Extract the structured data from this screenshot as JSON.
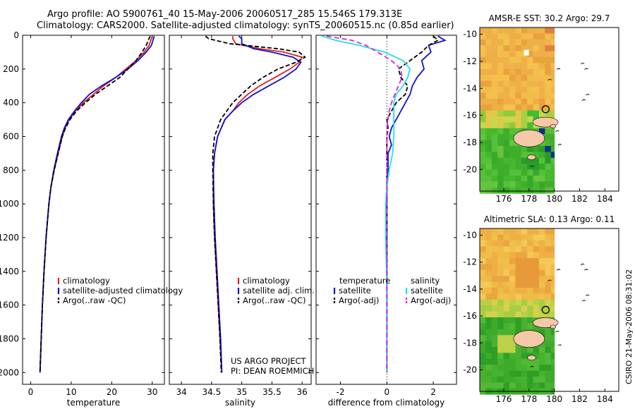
{
  "header": {
    "line1": "Argo profile: AO 5900761_40 15-May-2006 20060517_285 15.546S 179.313E",
    "line2": "Climatology: CARS2000. Satellite-adjusted climatology: synTS_20060515.nc (0.85d earlier)"
  },
  "credit": {
    "line1": "US ARGO PROJECT",
    "line2": "PI: DEAN ROEMMICH"
  },
  "stamp": "CSIRO 21-May-2006 08:31:02",
  "colors": {
    "climatology": "#e02020",
    "satellite": "#1010d0",
    "argo": "#000000",
    "sal_sat": "#20e0f0",
    "sal_argo": "#e020e0"
  },
  "chart_data": [
    {
      "type": "line",
      "name": "temperature",
      "xlabel": "temperature",
      "xlim": [
        -2,
        33
      ],
      "xticks": [
        0,
        10,
        20,
        30
      ],
      "ylim": [
        2070,
        0
      ],
      "yticks": [
        0,
        200,
        400,
        600,
        800,
        1000,
        1200,
        1400,
        1600,
        1800,
        2000
      ],
      "legend": [
        "climatology",
        "satellite-adjusted climatology",
        "Argo(..raw -QC)"
      ],
      "series": [
        {
          "name": "climatology",
          "color": "#e02020",
          "dash": "",
          "depth": [
            5,
            20,
            60,
            100,
            150,
            200,
            250,
            300,
            350,
            400,
            450,
            500,
            550,
            600,
            700,
            800,
            900,
            1000,
            1200,
            1400,
            1600,
            1800,
            2000
          ],
          "values": [
            30.0,
            29.8,
            29.2,
            28.0,
            26.0,
            23.5,
            21.0,
            18.0,
            15.5,
            13.0,
            11.0,
            9.5,
            8.5,
            7.8,
            6.8,
            5.8,
            5.0,
            4.5,
            3.8,
            3.3,
            2.9,
            2.6,
            2.3
          ]
        },
        {
          "name": "satellite",
          "color": "#1010d0",
          "dash": "",
          "depth": [
            5,
            20,
            60,
            100,
            150,
            200,
            250,
            300,
            350,
            400,
            450,
            500,
            550,
            600,
            700,
            800,
            900,
            1000,
            1200,
            1400,
            1600,
            1800,
            2000
          ],
          "values": [
            30.5,
            30.3,
            29.8,
            28.5,
            26.5,
            24.0,
            21.0,
            17.5,
            14.5,
            12.5,
            10.8,
            9.3,
            8.3,
            7.6,
            6.6,
            5.7,
            5.0,
            4.5,
            3.8,
            3.3,
            2.9,
            2.6,
            2.3
          ]
        },
        {
          "name": "argo",
          "color": "#000000",
          "dash": "6,3",
          "depth": [
            5,
            20,
            60,
            100,
            150,
            200,
            250,
            300,
            350,
            400,
            450,
            500,
            550,
            600,
            700,
            800,
            900,
            1000,
            1200,
            1400,
            1600,
            1800,
            2000
          ],
          "values": [
            29.5,
            29.2,
            28.5,
            27.5,
            26.0,
            24.0,
            22.0,
            19.0,
            16.0,
            13.5,
            11.3,
            9.7,
            8.6,
            7.8,
            6.8,
            5.8,
            5.0,
            4.5,
            3.8,
            3.3,
            2.9,
            2.6,
            2.3
          ]
        }
      ]
    },
    {
      "type": "line",
      "name": "salinity",
      "xlabel": "salinity",
      "xlim": [
        33.8,
        36.15
      ],
      "xticks": [
        34,
        34.5,
        35,
        35.5,
        36
      ],
      "ylim": [
        2070,
        0
      ],
      "legend": [
        "climatology",
        "satellite adj. clim.",
        "Argo(..raw -QC)"
      ],
      "series": [
        {
          "name": "climatology",
          "color": "#e02020",
          "dash": "",
          "depth": [
            5,
            20,
            50,
            80,
            100,
            130,
            160,
            200,
            250,
            300,
            350,
            400,
            450,
            500,
            600,
            700,
            800,
            1000,
            1200,
            1400,
            1600,
            1800,
            2000
          ],
          "values": [
            34.85,
            34.85,
            34.9,
            35.3,
            35.7,
            36.0,
            35.95,
            35.8,
            35.55,
            35.3,
            35.1,
            34.95,
            34.85,
            34.72,
            34.6,
            34.55,
            34.53,
            34.53,
            34.55,
            34.58,
            34.61,
            34.64,
            34.67
          ]
        },
        {
          "name": "satellite",
          "color": "#1010d0",
          "dash": "",
          "depth": [
            5,
            20,
            50,
            80,
            100,
            130,
            160,
            200,
            250,
            300,
            350,
            400,
            450,
            500,
            600,
            700,
            800,
            1000,
            1200,
            1400,
            1600,
            1800,
            2000
          ],
          "values": [
            34.95,
            35.0,
            35.0,
            35.2,
            35.5,
            35.85,
            35.98,
            35.9,
            35.7,
            35.45,
            35.2,
            35.0,
            34.85,
            34.72,
            34.6,
            34.55,
            34.53,
            34.54,
            34.56,
            34.59,
            34.62,
            34.65,
            34.67
          ]
        },
        {
          "name": "argo",
          "color": "#000000",
          "dash": "6,3",
          "depth": [
            5,
            20,
            50,
            80,
            100,
            130,
            160,
            200,
            250,
            300,
            350,
            400,
            450,
            500,
            600,
            700,
            800,
            1000,
            1200,
            1400,
            1600,
            1800,
            2000
          ],
          "values": [
            34.4,
            34.45,
            34.8,
            35.6,
            35.95,
            36.05,
            35.9,
            35.6,
            35.35,
            35.15,
            35.0,
            34.85,
            34.75,
            34.65,
            34.55,
            34.52,
            34.52,
            34.53,
            34.55,
            34.58,
            34.61,
            34.64,
            34.66
          ]
        }
      ]
    },
    {
      "type": "line",
      "name": "difference",
      "xlabel": "difference from climatology",
      "xlim": [
        -3.05,
        3.0
      ],
      "xticks": [
        -2,
        0,
        2
      ],
      "ylim": [
        2070,
        0
      ],
      "legend": [
        "temperature",
        "satellite",
        "Argo(-adj)",
        "salinity",
        "satellite",
        "Argo(-adj)"
      ],
      "series": [
        {
          "name": "temperature satellite",
          "color": "#1010d0",
          "dash": "",
          "depth": [
            5,
            30,
            60,
            100,
            150,
            200,
            250,
            300,
            350,
            400,
            450,
            500,
            550,
            600,
            650,
            700,
            800,
            900,
            1000,
            1200,
            1500,
            1800,
            2000
          ],
          "values": [
            2.2,
            2.5,
            1.8,
            1.9,
            1.5,
            1.6,
            1.3,
            1.1,
            1.0,
            0.8,
            0.6,
            0.4,
            0.2,
            0.1,
            0.2,
            0.05,
            0.05,
            0.0,
            0.0,
            0.0,
            0.0,
            0.0,
            0.0
          ]
        },
        {
          "name": "temperature argo",
          "color": "#000000",
          "dash": "6,3",
          "depth": [
            5,
            30,
            60,
            100,
            150,
            200,
            250,
            300,
            350,
            400,
            450,
            500,
            550,
            600,
            700,
            800,
            900,
            1000,
            1200,
            1500,
            1800,
            2000
          ],
          "values": [
            2.0,
            2.2,
            1.8,
            1.5,
            1.0,
            0.5,
            0.6,
            0.9,
            0.8,
            0.4,
            0.2,
            0.0,
            0.05,
            0.0,
            0.0,
            0.0,
            0.0,
            0.0,
            0.0,
            0.0,
            0.0,
            0.0
          ]
        },
        {
          "name": "salinity satellite",
          "color": "#20e0f0",
          "dash": "",
          "depth": [
            5,
            30,
            60,
            100,
            150,
            200,
            250,
            300,
            350,
            400,
            450,
            500,
            600,
            700,
            800,
            900,
            1000,
            1200,
            1500,
            1800,
            2000
          ],
          "values": [
            -2.8,
            -2.2,
            -1.2,
            -0.1,
            0.7,
            1.0,
            0.9,
            0.7,
            0.4,
            0.3,
            0.3,
            0.3,
            0.3,
            0.25,
            0.1,
            0.0,
            -0.05,
            -0.05,
            0.0,
            0.0,
            0.0
          ]
        },
        {
          "name": "salinity argo",
          "color": "#e020e0",
          "dash": "7,4",
          "depth": [
            5,
            30,
            60,
            100,
            150,
            200,
            250,
            300,
            350,
            400,
            450,
            500,
            550,
            600,
            700,
            800,
            1000,
            1200,
            1500,
            1800,
            2000
          ],
          "values": [
            -2.6,
            -1.5,
            -0.9,
            -0.4,
            0.2,
            0.6,
            0.65,
            0.5,
            0.35,
            0.2,
            0.1,
            0.05,
            0.0,
            0.0,
            0.0,
            0.0,
            0.0,
            0.0,
            0.0,
            0.0,
            0.0
          ]
        }
      ]
    },
    {
      "type": "heatmap",
      "name": "sst-map",
      "title": "AMSR-E SST: 30.2 Argo: 29.7",
      "xlim": [
        174.1,
        185.1
      ],
      "ylim": [
        -21.6,
        -9.5
      ],
      "xticks": [
        176,
        178,
        180,
        182,
        184
      ],
      "yticks": [
        -10,
        -12,
        -14,
        -16,
        -18,
        -20
      ],
      "float": {
        "lon": 179.313,
        "lat": -15.546
      }
    },
    {
      "type": "heatmap",
      "name": "sla-map",
      "title": "Altimetric SLA: 0.13 Argo: 0.11",
      "xlim": [
        174.1,
        185.1
      ],
      "ylim": [
        -21.6,
        -9.5
      ],
      "xticks": [
        176,
        178,
        180,
        182,
        184
      ],
      "yticks": [
        -10,
        -12,
        -14,
        -16,
        -18,
        -20
      ],
      "float": {
        "lon": 179.313,
        "lat": -15.546
      }
    }
  ]
}
